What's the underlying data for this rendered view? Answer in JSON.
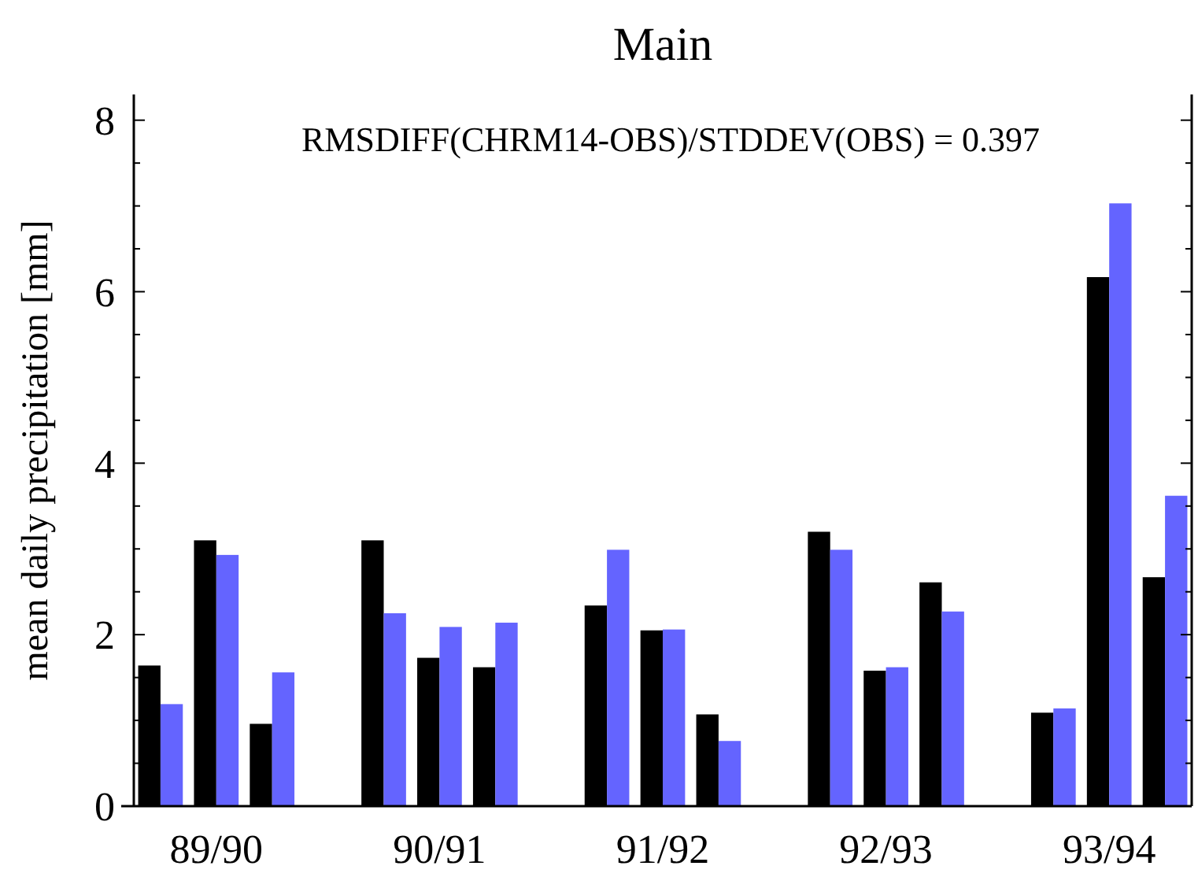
{
  "chart_data": {
    "type": "bar",
    "title": "Main",
    "ylabel": "mean daily precipitation [mm]",
    "annotations": [
      "RMSDIFF(CHRM14-OBS)/STDDEV(OBS) = 0.397"
    ],
    "categories": [
      null,
      "89/90",
      null,
      null,
      null,
      "90/91",
      null,
      null,
      null,
      "91/92",
      null,
      null,
      null,
      "92/93",
      null,
      null,
      null,
      "93/94",
      null
    ],
    "series": [
      {
        "color": "#000000",
        "values": [
          1.64,
          3.1,
          0.96,
          null,
          3.1,
          1.73,
          1.62,
          null,
          2.34,
          2.05,
          1.07,
          null,
          3.2,
          1.58,
          2.61,
          null,
          1.09,
          6.17,
          2.67
        ]
      },
      {
        "color": "#6464ff",
        "values": [
          1.19,
          2.93,
          1.56,
          null,
          2.25,
          2.09,
          2.14,
          null,
          2.99,
          2.06,
          0.76,
          null,
          2.99,
          1.62,
          2.27,
          null,
          1.14,
          7.03,
          3.62
        ]
      }
    ],
    "ylim": [
      0,
      8.3
    ],
    "yticks": [
      0,
      {
        "value": 0.5,
        "label": null
      },
      {
        "value": 1,
        "label": null
      },
      {
        "value": 1.5,
        "label": null
      },
      2,
      {
        "value": 2.5,
        "label": null
      },
      {
        "value": 3,
        "label": null
      },
      {
        "value": 3.5,
        "label": null
      },
      4,
      {
        "value": 4.5,
        "label": null
      },
      {
        "value": 5,
        "label": null
      },
      {
        "value": 5.5,
        "label": null
      },
      6,
      {
        "value": 6.5,
        "label": null
      },
      {
        "value": 7,
        "label": null
      },
      {
        "value": 7.5,
        "label": null
      },
      8
    ],
    "grid": false
  }
}
